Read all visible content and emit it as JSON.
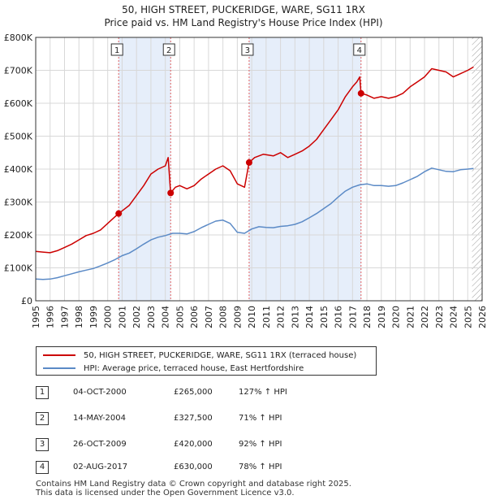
{
  "chart_data": {
    "type": "line",
    "title": "50, HIGH STREET, PUCKERIDGE, WARE, SG11 1RX",
    "subtitle": "Price paid vs. HM Land Registry's House Price Index (HPI)",
    "xlim": [
      1995,
      2026
    ],
    "ylim": [
      0,
      800000
    ],
    "x_ticks": [
      "1995",
      "1996",
      "1997",
      "1998",
      "1999",
      "2000",
      "2001",
      "2002",
      "2003",
      "2004",
      "2005",
      "2006",
      "2007",
      "2008",
      "2009",
      "2010",
      "2011",
      "2012",
      "2013",
      "2014",
      "2015",
      "2016",
      "2017",
      "2018",
      "2019",
      "2020",
      "2021",
      "2022",
      "2023",
      "2024",
      "2025",
      "2026"
    ],
    "y_ticks": [
      {
        "value": 0,
        "label": "£0"
      },
      {
        "value": 100000,
        "label": "£100K"
      },
      {
        "value": 200000,
        "label": "£200K"
      },
      {
        "value": 300000,
        "label": "£300K"
      },
      {
        "value": 400000,
        "label": "£400K"
      },
      {
        "value": 500000,
        "label": "£500K"
      },
      {
        "value": 600000,
        "label": "£600K"
      },
      {
        "value": 700000,
        "label": "£700K"
      },
      {
        "value": 800000,
        "label": "£800K"
      }
    ],
    "shaded_periods": [
      [
        2000.76,
        2004.37
      ],
      [
        2009.82,
        2017.59
      ]
    ],
    "future_hatch_from": 2025.3,
    "series": [
      {
        "name": "50, HIGH STREET, PUCKERIDGE, WARE, SG11 1RX (terraced house)",
        "color": "#cc0000",
        "points": [
          [
            1995.0,
            150000
          ],
          [
            1995.5,
            148000
          ],
          [
            1996.0,
            146000
          ],
          [
            1996.5,
            152000
          ],
          [
            1997.0,
            162000
          ],
          [
            1997.5,
            172000
          ],
          [
            1998.0,
            185000
          ],
          [
            1998.5,
            198000
          ],
          [
            1999.0,
            205000
          ],
          [
            1999.5,
            215000
          ],
          [
            2000.0,
            235000
          ],
          [
            2000.5,
            255000
          ],
          [
            2000.76,
            265000
          ],
          [
            2001.5,
            290000
          ],
          [
            2002.0,
            320000
          ],
          [
            2002.5,
            350000
          ],
          [
            2003.0,
            385000
          ],
          [
            2003.5,
            400000
          ],
          [
            2004.0,
            410000
          ],
          [
            2004.2,
            435000
          ],
          [
            2004.37,
            327500
          ],
          [
            2004.7,
            345000
          ],
          [
            2005.0,
            350000
          ],
          [
            2005.5,
            340000
          ],
          [
            2006.0,
            350000
          ],
          [
            2006.5,
            370000
          ],
          [
            2007.0,
            385000
          ],
          [
            2007.5,
            400000
          ],
          [
            2008.0,
            410000
          ],
          [
            2008.5,
            395000
          ],
          [
            2009.0,
            355000
          ],
          [
            2009.5,
            345000
          ],
          [
            2009.82,
            420000
          ],
          [
            2010.2,
            435000
          ],
          [
            2010.8,
            445000
          ],
          [
            2011.5,
            440000
          ],
          [
            2012.0,
            450000
          ],
          [
            2012.5,
            435000
          ],
          [
            2013.0,
            445000
          ],
          [
            2013.5,
            455000
          ],
          [
            2014.0,
            470000
          ],
          [
            2014.5,
            490000
          ],
          [
            2015.0,
            520000
          ],
          [
            2015.5,
            550000
          ],
          [
            2016.0,
            580000
          ],
          [
            2016.5,
            620000
          ],
          [
            2017.0,
            650000
          ],
          [
            2017.3,
            665000
          ],
          [
            2017.5,
            680000
          ],
          [
            2017.59,
            630000
          ],
          [
            2018.0,
            625000
          ],
          [
            2018.5,
            615000
          ],
          [
            2019.0,
            620000
          ],
          [
            2019.5,
            615000
          ],
          [
            2020.0,
            620000
          ],
          [
            2020.5,
            630000
          ],
          [
            2021.0,
            650000
          ],
          [
            2021.5,
            665000
          ],
          [
            2022.0,
            680000
          ],
          [
            2022.5,
            705000
          ],
          [
            2023.0,
            700000
          ],
          [
            2023.5,
            695000
          ],
          [
            2024.0,
            680000
          ],
          [
            2024.5,
            690000
          ],
          [
            2025.0,
            700000
          ],
          [
            2025.4,
            710000
          ]
        ]
      },
      {
        "name": "HPI: Average price, terraced house, East Hertfordshire",
        "color": "#5b8ac6",
        "points": [
          [
            1995.0,
            66000
          ],
          [
            1995.5,
            65000
          ],
          [
            1996.0,
            66000
          ],
          [
            1996.5,
            70000
          ],
          [
            1997.0,
            76000
          ],
          [
            1997.5,
            82000
          ],
          [
            1998.0,
            88000
          ],
          [
            1998.5,
            93000
          ],
          [
            1999.0,
            98000
          ],
          [
            1999.5,
            106000
          ],
          [
            2000.0,
            115000
          ],
          [
            2000.5,
            125000
          ],
          [
            2001.0,
            137000
          ],
          [
            2001.5,
            145000
          ],
          [
            2002.0,
            158000
          ],
          [
            2002.5,
            172000
          ],
          [
            2003.0,
            185000
          ],
          [
            2003.5,
            193000
          ],
          [
            2004.0,
            198000
          ],
          [
            2004.5,
            205000
          ],
          [
            2005.0,
            205000
          ],
          [
            2005.5,
            203000
          ],
          [
            2006.0,
            210000
          ],
          [
            2006.5,
            222000
          ],
          [
            2007.0,
            232000
          ],
          [
            2007.5,
            242000
          ],
          [
            2008.0,
            245000
          ],
          [
            2008.5,
            235000
          ],
          [
            2009.0,
            208000
          ],
          [
            2009.5,
            205000
          ],
          [
            2010.0,
            218000
          ],
          [
            2010.5,
            225000
          ],
          [
            2011.0,
            223000
          ],
          [
            2011.5,
            222000
          ],
          [
            2012.0,
            226000
          ],
          [
            2012.5,
            228000
          ],
          [
            2013.0,
            232000
          ],
          [
            2013.5,
            240000
          ],
          [
            2014.0,
            252000
          ],
          [
            2014.5,
            265000
          ],
          [
            2015.0,
            280000
          ],
          [
            2015.5,
            295000
          ],
          [
            2016.0,
            315000
          ],
          [
            2016.5,
            333000
          ],
          [
            2017.0,
            345000
          ],
          [
            2017.5,
            352000
          ],
          [
            2018.0,
            355000
          ],
          [
            2018.5,
            350000
          ],
          [
            2019.0,
            350000
          ],
          [
            2019.5,
            348000
          ],
          [
            2020.0,
            350000
          ],
          [
            2020.5,
            358000
          ],
          [
            2021.0,
            368000
          ],
          [
            2021.5,
            378000
          ],
          [
            2022.0,
            392000
          ],
          [
            2022.5,
            403000
          ],
          [
            2023.0,
            398000
          ],
          [
            2023.5,
            393000
          ],
          [
            2024.0,
            392000
          ],
          [
            2024.5,
            398000
          ],
          [
            2025.0,
            400000
          ],
          [
            2025.4,
            402000
          ]
        ]
      }
    ],
    "sales": [
      {
        "label": "1",
        "x": 2000.76,
        "price": 265000
      },
      {
        "label": "2",
        "x": 2004.37,
        "price": 327500
      },
      {
        "label": "3",
        "x": 2009.82,
        "price": 420000
      },
      {
        "label": "4",
        "x": 2017.59,
        "price": 630000
      }
    ]
  },
  "legend": {
    "property": "50, HIGH STREET, PUCKERIDGE, WARE, SG11 1RX (terraced house)",
    "hpi": "HPI: Average price, terraced house, East Hertfordshire"
  },
  "sales_table": [
    {
      "num": "1",
      "date": "04-OCT-2000",
      "price": "£265,000",
      "hpi": "127% ↑ HPI"
    },
    {
      "num": "2",
      "date": "14-MAY-2004",
      "price": "£327,500",
      "hpi": "71% ↑ HPI"
    },
    {
      "num": "3",
      "date": "26-OCT-2009",
      "price": "£420,000",
      "hpi": "92% ↑ HPI"
    },
    {
      "num": "4",
      "date": "02-AUG-2017",
      "price": "£630,000",
      "hpi": "78% ↑ HPI"
    }
  ],
  "footer": {
    "line1": "Contains HM Land Registry data © Crown copyright and database right 2025.",
    "line2": "This data is licensed under the Open Government Licence v3.0."
  }
}
